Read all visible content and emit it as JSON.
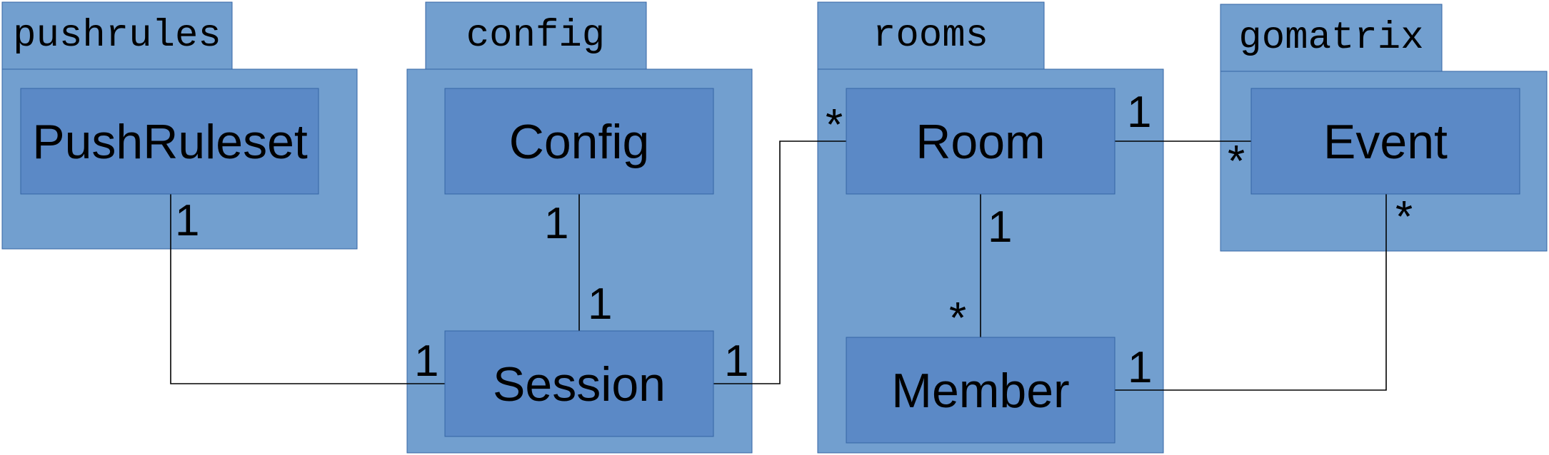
{
  "packages": {
    "pushrules": {
      "label": "pushrules"
    },
    "config": {
      "label": "config"
    },
    "rooms": {
      "label": "rooms"
    },
    "gomatrix": {
      "label": "gomatrix"
    }
  },
  "classes": {
    "pushruleset": {
      "label": "PushRuleset"
    },
    "config": {
      "label": "Config"
    },
    "session": {
      "label": "Session"
    },
    "room": {
      "label": "Room"
    },
    "member": {
      "label": "Member"
    },
    "event": {
      "label": "Event"
    }
  },
  "multiplicities": {
    "pushruleset_session_pushruleset_end": "1",
    "pushruleset_session_session_end": "1",
    "config_session_config_end": "1",
    "config_session_session_end": "1",
    "session_room_session_end": "1",
    "session_room_room_end": "*",
    "room_event_room_end": "1",
    "room_event_event_end": "*",
    "room_member_room_end": "1",
    "room_member_member_end": "*",
    "member_event_member_end": "1",
    "member_event_event_end": "*"
  }
}
